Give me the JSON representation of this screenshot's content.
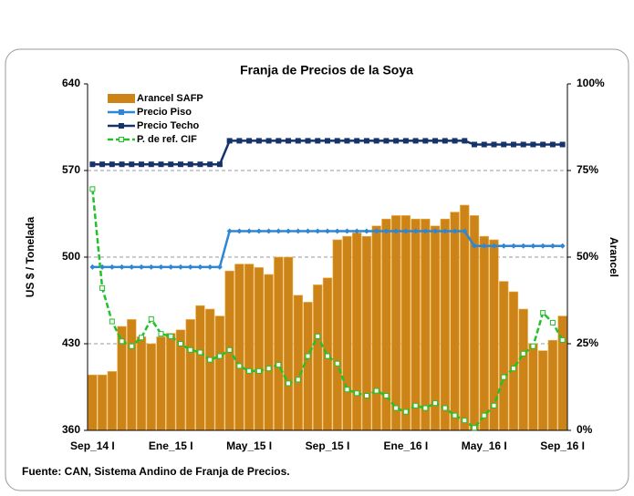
{
  "chart_data": {
    "type": "combo",
    "title": "Franja de Precios de la Soya",
    "y_label": "US $ / Tonelada",
    "y2_label": "Arancel",
    "source": "Fuente: CAN, Sistema Andino de Franja de Precios.",
    "categories": [
      "Sep_14 I",
      null,
      null,
      null,
      null,
      null,
      null,
      null,
      "Ene_15 I",
      null,
      null,
      null,
      null,
      null,
      null,
      null,
      "May_15 I",
      null,
      null,
      null,
      null,
      null,
      null,
      null,
      "Sep_15 I",
      null,
      null,
      null,
      null,
      null,
      null,
      null,
      "Ene_16 I",
      null,
      null,
      null,
      null,
      null,
      null,
      null,
      "May_16 I",
      null,
      null,
      null,
      null,
      null,
      null,
      null,
      "Sep_16 I"
    ],
    "ylim": [
      360,
      640
    ],
    "yticks": [
      360,
      430,
      500,
      570,
      640
    ],
    "y2lim": [
      0,
      100
    ],
    "y2ticks": [
      {
        "value": 0,
        "label": "0%"
      },
      {
        "value": 25,
        "label": "25%"
      },
      {
        "value": 50,
        "label": "50%"
      },
      {
        "value": 75,
        "label": "75%"
      },
      {
        "value": 100,
        "label": "100%"
      }
    ],
    "grid": true,
    "series": [
      {
        "name": "Arancel SAFP",
        "type": "bar",
        "axis": "y2",
        "color": "#cc8418",
        "values": [
          16,
          16,
          17,
          30,
          32,
          27,
          25,
          27,
          28,
          29,
          32,
          36,
          35,
          33,
          46,
          48,
          48,
          47,
          45,
          50,
          50,
          39,
          37,
          42,
          44,
          55,
          56,
          57,
          56,
          59,
          61,
          62,
          62,
          61,
          61,
          59,
          61,
          63,
          65,
          62,
          56,
          55,
          43,
          40,
          35,
          25,
          23,
          26,
          33
        ]
      },
      {
        "name": "Precio Piso",
        "type": "line",
        "axis": "y",
        "color": "#2e86d4",
        "marker": "diamond",
        "values": [
          492,
          492,
          492,
          492,
          492,
          492,
          492,
          492,
          492,
          492,
          492,
          492,
          492,
          492,
          521,
          521,
          521,
          521,
          521,
          521,
          521,
          521,
          521,
          521,
          521,
          521,
          521,
          521,
          521,
          521,
          521,
          521,
          521,
          521,
          521,
          521,
          521,
          521,
          521,
          509,
          509,
          509,
          509,
          509,
          509,
          509,
          509,
          509,
          509
        ]
      },
      {
        "name": "Precio Techo",
        "type": "line",
        "axis": "y",
        "color": "#16336b",
        "marker": "square",
        "values": [
          575,
          575,
          575,
          575,
          575,
          575,
          575,
          575,
          575,
          575,
          575,
          575,
          575,
          575,
          594,
          594,
          594,
          594,
          594,
          594,
          594,
          594,
          594,
          594,
          594,
          594,
          594,
          594,
          594,
          594,
          594,
          594,
          594,
          594,
          594,
          594,
          594,
          594,
          594,
          591,
          591,
          591,
          591,
          591,
          591,
          591,
          591,
          591,
          591
        ]
      },
      {
        "name": "P. de ref. CIF",
        "type": "line",
        "axis": "y",
        "color": "#22c02a",
        "marker": "square",
        "dashed": true,
        "values": [
          555,
          475,
          448,
          432,
          428,
          435,
          450,
          438,
          436,
          430,
          425,
          423,
          417,
          420,
          425,
          412,
          408,
          408,
          410,
          413,
          398,
          401,
          420,
          436,
          420,
          414,
          393,
          390,
          388,
          392,
          388,
          378,
          375,
          380,
          378,
          382,
          378,
          372,
          368,
          362,
          372,
          380,
          403,
          410,
          422,
          428,
          455,
          447,
          433
        ]
      }
    ]
  }
}
